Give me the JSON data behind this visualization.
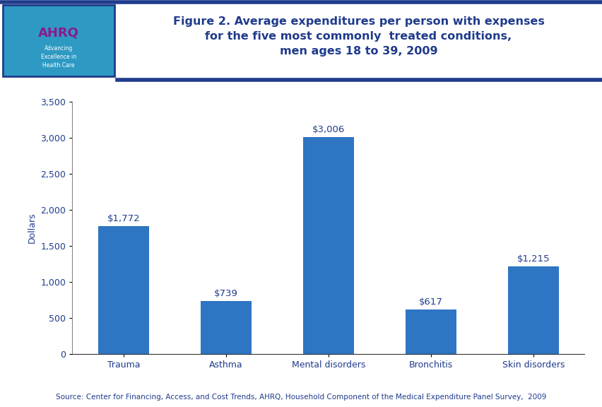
{
  "categories": [
    "Trauma",
    "Asthma",
    "Mental disorders",
    "Bronchitis",
    "Skin disorders"
  ],
  "values": [
    1772,
    739,
    3006,
    617,
    1215
  ],
  "labels": [
    "$1,772",
    "$739",
    "$3,006",
    "$617",
    "$1,215"
  ],
  "bar_color": "#2E75C3",
  "ylim": [
    0,
    3500
  ],
  "yticks": [
    0,
    500,
    1000,
    1500,
    2000,
    2500,
    3000,
    3500
  ],
  "ylabel": "Dollars",
  "title_line1": "Figure 2. Average expenditures per person with expenses",
  "title_line2": "for the five most commonly  treated conditions,",
  "title_line3": "men ages 18 to 39, 2009",
  "title_color": "#1F3B8C",
  "title_fontsize": 11.5,
  "bar_label_color": "#1F3B8C",
  "bar_label_fontsize": 9.5,
  "ylabel_fontsize": 9,
  "ylabel_color": "#1F3B8C",
  "xtick_fontsize": 9,
  "ytick_fontsize": 9,
  "tick_color": "#1F3B8C",
  "source_text": "Source: Center for Financing, Access, and Cost Trends, AHRQ, Household Component of the Medical Expenditure Panel Survey,  2009",
  "source_fontsize": 7.5,
  "source_color": "#1F3B8C",
  "header_bar_color": "#1F3B8C",
  "background_color": "#FFFFFF",
  "plot_bg_color": "#FFFFFF",
  "top_border_color": "#1F3B8C",
  "logo_bg_color": "#2E9AC4"
}
